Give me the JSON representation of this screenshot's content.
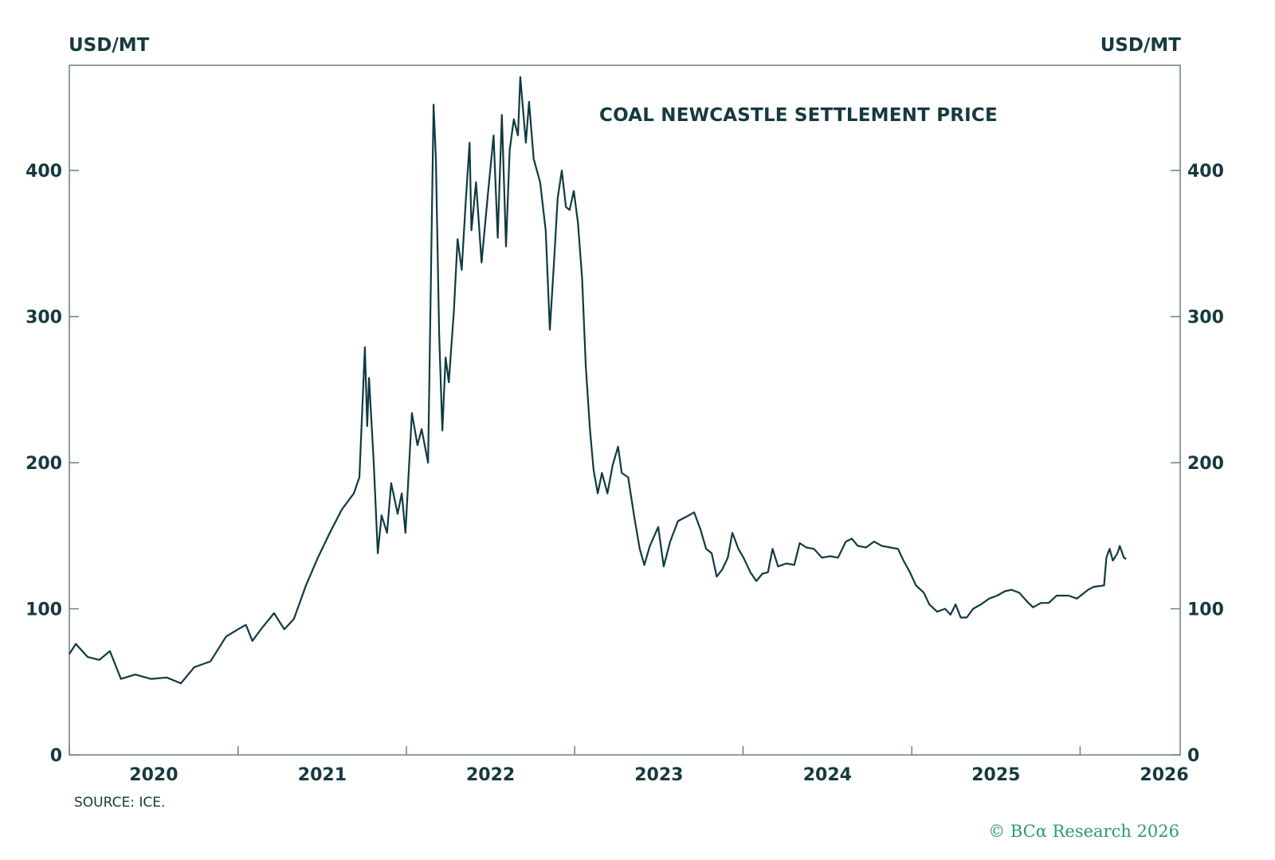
{
  "chart_data": {
    "type": "line",
    "title": "COAL NEWCASTLE SETTLEMENT PRICE",
    "ylabel_left": "USD/MT",
    "ylabel_right": "USD/MT",
    "source": "SOURCE: ICE.",
    "copyright": "© BCα Research 2026",
    "xlim": [
      "2020-01-01",
      "2026-08-06"
    ],
    "ylim": [
      0,
      472
    ],
    "yticks": [
      0,
      100,
      200,
      300,
      400
    ],
    "xtick_labels": [
      "2020",
      "2021",
      "2022",
      "2023",
      "2024",
      "2025",
      "2026"
    ],
    "grid": false,
    "line_color": "#0f3a40",
    "series": [
      {
        "points": [
          [
            "2020-01-01",
            69
          ],
          [
            "2020-01-15",
            76
          ],
          [
            "2020-02-10",
            67
          ],
          [
            "2020-03-06",
            65
          ],
          [
            "2020-03-29",
            71
          ],
          [
            "2020-04-22",
            52
          ],
          [
            "2020-05-23",
            55
          ],
          [
            "2020-06-26",
            52
          ],
          [
            "2020-07-30",
            53
          ],
          [
            "2020-08-30",
            49
          ],
          [
            "2020-09-28",
            60
          ],
          [
            "2020-11-02",
            64
          ],
          [
            "2020-12-06",
            81
          ],
          [
            "2021-01-01",
            86
          ],
          [
            "2021-01-18",
            89
          ],
          [
            "2021-02-01",
            78
          ],
          [
            "2021-02-22",
            87
          ],
          [
            "2021-03-20",
            97
          ],
          [
            "2021-04-11",
            86
          ],
          [
            "2021-05-02",
            93
          ],
          [
            "2021-05-28",
            116
          ],
          [
            "2021-06-23",
            135
          ],
          [
            "2021-07-19",
            152
          ],
          [
            "2021-08-14",
            168
          ],
          [
            "2021-09-09",
            179
          ],
          [
            "2021-09-21",
            190
          ],
          [
            "2021-10-03",
            279
          ],
          [
            "2021-10-08",
            225
          ],
          [
            "2021-10-12",
            258
          ],
          [
            "2021-10-22",
            201
          ],
          [
            "2021-10-31",
            138
          ],
          [
            "2021-11-08",
            164
          ],
          [
            "2021-11-20",
            152
          ],
          [
            "2021-11-29",
            186
          ],
          [
            "2021-12-13",
            165
          ],
          [
            "2021-12-22",
            179
          ],
          [
            "2021-12-30",
            152
          ],
          [
            "2022-01-13",
            234
          ],
          [
            "2022-01-25",
            212
          ],
          [
            "2022-02-03",
            223
          ],
          [
            "2022-02-17",
            200
          ],
          [
            "2022-03-01",
            445
          ],
          [
            "2022-03-06",
            408
          ],
          [
            "2022-03-13",
            288
          ],
          [
            "2022-03-20",
            222
          ],
          [
            "2022-03-27",
            272
          ],
          [
            "2022-04-03",
            255
          ],
          [
            "2022-04-14",
            304
          ],
          [
            "2022-04-22",
            353
          ],
          [
            "2022-05-01",
            332
          ],
          [
            "2022-05-10",
            381
          ],
          [
            "2022-05-18",
            419
          ],
          [
            "2022-05-22",
            359
          ],
          [
            "2022-06-01",
            392
          ],
          [
            "2022-06-13",
            337
          ],
          [
            "2022-06-26",
            381
          ],
          [
            "2022-07-09",
            424
          ],
          [
            "2022-07-18",
            354
          ],
          [
            "2022-07-27",
            438
          ],
          [
            "2022-08-05",
            348
          ],
          [
            "2022-08-13",
            414
          ],
          [
            "2022-08-22",
            435
          ],
          [
            "2022-08-31",
            424
          ],
          [
            "2022-09-05",
            464
          ],
          [
            "2022-09-17",
            419
          ],
          [
            "2022-09-24",
            447
          ],
          [
            "2022-10-04",
            408
          ],
          [
            "2022-10-18",
            392
          ],
          [
            "2022-10-30",
            359
          ],
          [
            "2022-11-08",
            291
          ],
          [
            "2022-11-17",
            337
          ],
          [
            "2022-11-25",
            381
          ],
          [
            "2022-12-04",
            400
          ],
          [
            "2022-12-13",
            375
          ],
          [
            "2022-12-21",
            373
          ],
          [
            "2022-12-30",
            386
          ],
          [
            "2023-01-08",
            364
          ],
          [
            "2023-01-17",
            326
          ],
          [
            "2023-01-25",
            266
          ],
          [
            "2023-02-03",
            223
          ],
          [
            "2023-02-11",
            195
          ],
          [
            "2023-02-20",
            179
          ],
          [
            "2023-03-01",
            193
          ],
          [
            "2023-03-13",
            179
          ],
          [
            "2023-03-24",
            198
          ],
          [
            "2023-04-05",
            211
          ],
          [
            "2023-04-13",
            193
          ],
          [
            "2023-04-27",
            190
          ],
          [
            "2023-05-10",
            163
          ],
          [
            "2023-05-22",
            141
          ],
          [
            "2023-06-01",
            130
          ],
          [
            "2023-06-13",
            143
          ],
          [
            "2023-07-01",
            156
          ],
          [
            "2023-07-13",
            129
          ],
          [
            "2023-07-27",
            146
          ],
          [
            "2023-08-13",
            160
          ],
          [
            "2023-08-31",
            163
          ],
          [
            "2023-09-17",
            166
          ],
          [
            "2023-10-01",
            154
          ],
          [
            "2023-10-13",
            141
          ],
          [
            "2023-10-25",
            138
          ],
          [
            "2023-11-05",
            122
          ],
          [
            "2023-11-17",
            127
          ],
          [
            "2023-11-29",
            135
          ],
          [
            "2023-12-09",
            152
          ],
          [
            "2023-12-22",
            141
          ],
          [
            "2024-01-02",
            135
          ],
          [
            "2024-01-17",
            125
          ],
          [
            "2024-01-30",
            119
          ],
          [
            "2024-02-12",
            124
          ],
          [
            "2024-02-24",
            125
          ],
          [
            "2024-03-05",
            141
          ],
          [
            "2024-03-17",
            129
          ],
          [
            "2024-04-04",
            131
          ],
          [
            "2024-04-21",
            130
          ],
          [
            "2024-05-03",
            145
          ],
          [
            "2024-05-17",
            142
          ],
          [
            "2024-06-03",
            141
          ],
          [
            "2024-06-20",
            135
          ],
          [
            "2024-07-08",
            136
          ],
          [
            "2024-07-25",
            135
          ],
          [
            "2024-08-11",
            146
          ],
          [
            "2024-08-24",
            148
          ],
          [
            "2024-09-06",
            143
          ],
          [
            "2024-09-24",
            142
          ],
          [
            "2024-10-11",
            146
          ],
          [
            "2024-10-28",
            143
          ],
          [
            "2024-11-15",
            142
          ],
          [
            "2024-12-02",
            141
          ],
          [
            "2024-12-14",
            133
          ],
          [
            "2024-12-28",
            125
          ],
          [
            "2025-01-10",
            116
          ],
          [
            "2025-01-27",
            111
          ],
          [
            "2025-02-08",
            103
          ],
          [
            "2025-02-25",
            98
          ],
          [
            "2025-03-14",
            100
          ],
          [
            "2025-03-26",
            96
          ],
          [
            "2025-04-06",
            103
          ],
          [
            "2025-04-17",
            94
          ],
          [
            "2025-04-30",
            94
          ],
          [
            "2025-05-14",
            100
          ],
          [
            "2025-05-31",
            103
          ],
          [
            "2025-06-18",
            107
          ],
          [
            "2025-07-05",
            109
          ],
          [
            "2025-07-22",
            112
          ],
          [
            "2025-08-05",
            113
          ],
          [
            "2025-08-22",
            111
          ],
          [
            "2025-09-08",
            105
          ],
          [
            "2025-09-21",
            101
          ],
          [
            "2025-10-08",
            104
          ],
          [
            "2025-10-25",
            104
          ],
          [
            "2025-11-11",
            109
          ],
          [
            "2025-12-07",
            109
          ],
          [
            "2025-12-25",
            107
          ],
          [
            "2026-01-18",
            113
          ],
          [
            "2026-01-30",
            115
          ],
          [
            "2026-02-22",
            116
          ],
          [
            "2026-02-27",
            135
          ],
          [
            "2026-03-06",
            141
          ],
          [
            "2026-03-13",
            133
          ],
          [
            "2026-03-23",
            138
          ],
          [
            "2026-03-28",
            143
          ],
          [
            "2026-04-06",
            135
          ],
          [
            "2026-04-11",
            134
          ]
        ]
      }
    ]
  }
}
